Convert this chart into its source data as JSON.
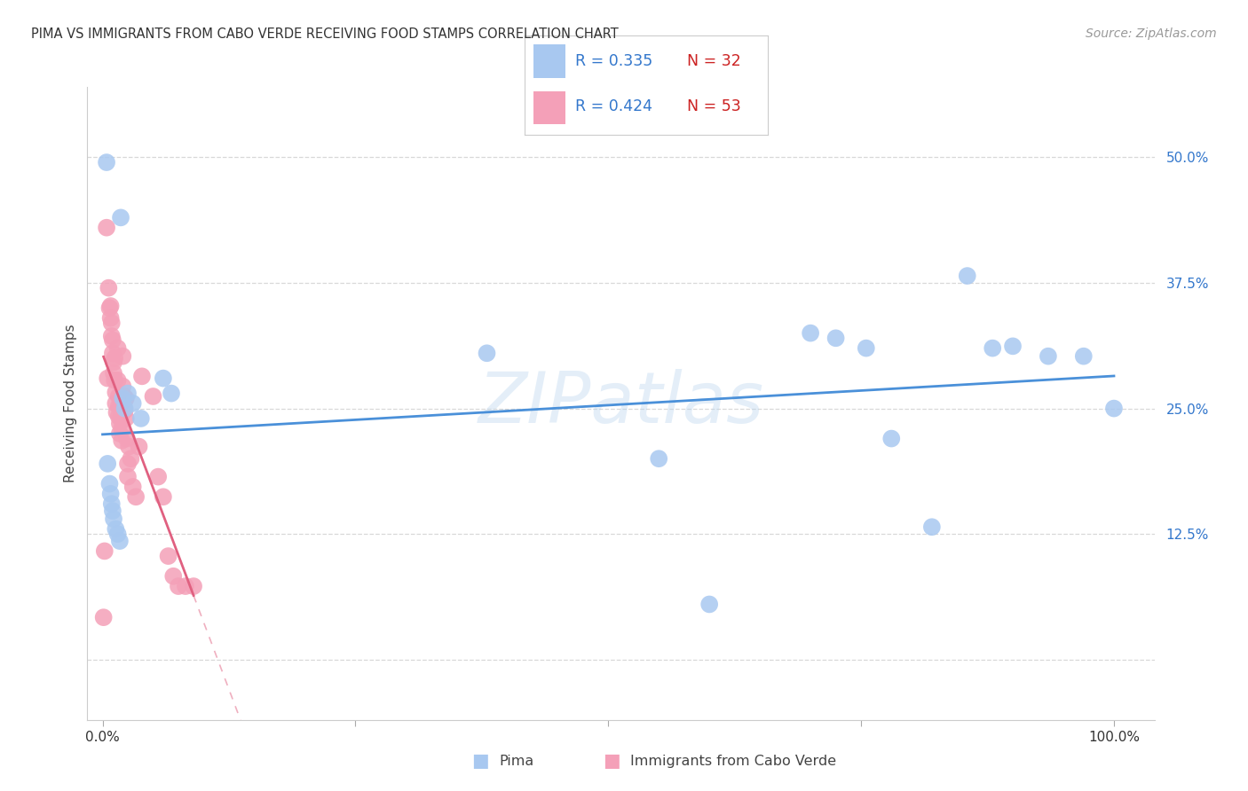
{
  "title": "PIMA VS IMMIGRANTS FROM CABO VERDE RECEIVING FOOD STAMPS CORRELATION CHART",
  "source": "Source: ZipAtlas.com",
  "ylabel": "Receiving Food Stamps",
  "watermark": "ZIPatlas",
  "pima_color": "#a8c8f0",
  "cabo_color": "#f4a0b8",
  "pima_line_color": "#4a90d9",
  "cabo_line_color": "#e06080",
  "grid_color": "#d8d8d8",
  "bg_color": "#ffffff",
  "ytick_vals": [
    0.0,
    0.125,
    0.25,
    0.375,
    0.5
  ],
  "ytick_labels": [
    "",
    "12.5%",
    "25.0%",
    "37.5%",
    "50.0%"
  ],
  "xlim": [
    -0.015,
    1.04
  ],
  "ylim": [
    -0.06,
    0.57
  ],
  "pima_x": [
    0.004,
    0.018,
    0.005,
    0.007,
    0.008,
    0.009,
    0.01,
    0.011,
    0.013,
    0.015,
    0.017,
    0.02,
    0.022,
    0.025,
    0.03,
    0.038,
    0.06,
    0.068,
    0.38,
    0.55,
    0.6,
    0.7,
    0.725,
    0.755,
    0.78,
    0.82,
    0.855,
    0.88,
    0.9,
    0.935,
    0.97,
    1.0
  ],
  "pima_y": [
    0.495,
    0.44,
    0.195,
    0.175,
    0.165,
    0.155,
    0.148,
    0.14,
    0.13,
    0.125,
    0.118,
    0.26,
    0.25,
    0.265,
    0.255,
    0.24,
    0.28,
    0.265,
    0.305,
    0.2,
    0.055,
    0.325,
    0.32,
    0.31,
    0.22,
    0.132,
    0.382,
    0.31,
    0.312,
    0.302,
    0.302,
    0.25
  ],
  "cabo_x": [
    0.001,
    0.004,
    0.005,
    0.006,
    0.007,
    0.008,
    0.008,
    0.009,
    0.009,
    0.01,
    0.01,
    0.011,
    0.011,
    0.012,
    0.012,
    0.013,
    0.013,
    0.014,
    0.015,
    0.015,
    0.016,
    0.016,
    0.016,
    0.017,
    0.017,
    0.018,
    0.018,
    0.019,
    0.019,
    0.02,
    0.02,
    0.021,
    0.022,
    0.022,
    0.023,
    0.023,
    0.024,
    0.025,
    0.025,
    0.026,
    0.028,
    0.03,
    0.033,
    0.036,
    0.039,
    0.05,
    0.055,
    0.06,
    0.065,
    0.07,
    0.075,
    0.082,
    0.09,
    0.002
  ],
  "cabo_y": [
    0.042,
    0.43,
    0.28,
    0.37,
    0.35,
    0.352,
    0.34,
    0.335,
    0.322,
    0.318,
    0.305,
    0.296,
    0.285,
    0.3,
    0.278,
    0.266,
    0.255,
    0.246,
    0.31,
    0.278,
    0.262,
    0.252,
    0.242,
    0.235,
    0.225,
    0.252,
    0.24,
    0.23,
    0.218,
    0.302,
    0.272,
    0.262,
    0.258,
    0.248,
    0.26,
    0.24,
    0.22,
    0.195,
    0.182,
    0.212,
    0.2,
    0.172,
    0.162,
    0.212,
    0.282,
    0.262,
    0.182,
    0.162,
    0.103,
    0.083,
    0.073,
    0.073,
    0.073,
    0.108
  ]
}
